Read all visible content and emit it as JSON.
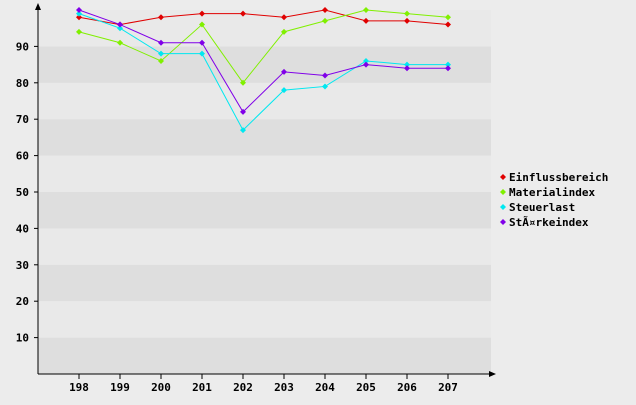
{
  "chart_data": {
    "type": "line",
    "title": "",
    "xlabel": "",
    "ylabel": "",
    "categories": [
      "198",
      "199",
      "200",
      "201",
      "202",
      "203",
      "204",
      "205",
      "206",
      "207"
    ],
    "ylim": [
      0,
      100
    ],
    "yticks": [
      10,
      20,
      30,
      40,
      50,
      60,
      70,
      80,
      90
    ],
    "grid": "horizontal alternating bands",
    "legend": "right",
    "series": [
      {
        "name": "Einflussbereich",
        "color": "#e00000",
        "values": [
          98,
          96,
          98,
          99,
          99,
          98,
          100,
          97,
          97,
          96
        ]
      },
      {
        "name": "Materialindex",
        "color": "#80f000",
        "values": [
          94,
          91,
          86,
          96,
          80,
          94,
          97,
          100,
          99,
          98
        ]
      },
      {
        "name": "Steuerlast",
        "color": "#00e8f0",
        "values": [
          99,
          95,
          88,
          88,
          67,
          78,
          79,
          86,
          85,
          85
        ]
      },
      {
        "name": "StÃ¤rkeindex",
        "color": "#8000e8",
        "values": [
          100,
          96,
          91,
          91,
          72,
          83,
          82,
          85,
          84,
          84
        ]
      }
    ]
  }
}
